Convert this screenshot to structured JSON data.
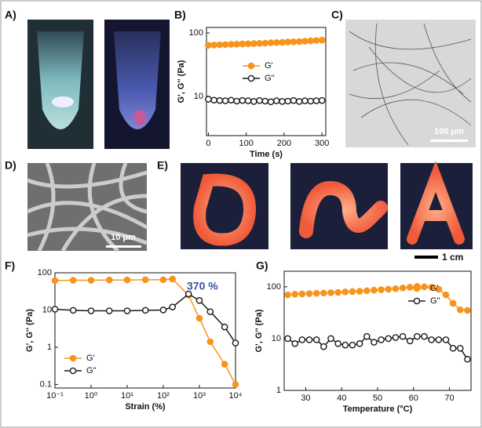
{
  "labels": {
    "A": "A)",
    "B": "B)",
    "C": "C)",
    "D": "D)",
    "E": "E)",
    "F": "F)",
    "G": "G)"
  },
  "scale_bars": {
    "C": "100 μm",
    "D": "10 μm",
    "E": "1 cm"
  },
  "chart_data": [
    {
      "type": "line",
      "xlabel": "Time (s)",
      "ylabel": "G', G'' (Pa)",
      "ylog": true,
      "xlog": false,
      "xlim": [
        -5,
        310
      ],
      "xticks": [
        0,
        100,
        200,
        300
      ],
      "ylim": [
        2.4,
        122
      ],
      "yticks": [
        10,
        100
      ],
      "legend": "center",
      "x": [
        0,
        15,
        30,
        45,
        60,
        75,
        90,
        105,
        120,
        135,
        150,
        165,
        180,
        195,
        210,
        225,
        240,
        255,
        270,
        285,
        300
      ],
      "series": [
        {
          "name": "G'",
          "color": "#f7941d",
          "marker_fill": "#f7941d",
          "values": [
            64,
            64.5,
            65,
            65.5,
            66,
            66.5,
            67,
            67.5,
            68,
            68.5,
            69,
            70,
            70.5,
            71,
            72,
            72.5,
            73,
            74,
            75,
            76,
            77
          ]
        },
        {
          "name": "G''",
          "color": "#1a1a1a",
          "marker_fill": "#ffffff",
          "values": [
            9,
            8.7,
            8.6,
            8.5,
            8.7,
            8.4,
            8.6,
            8.5,
            8.3,
            8.6,
            8.4,
            8.2,
            8.5,
            8.3,
            8.4,
            8.6,
            8.3,
            8.5,
            8.4,
            8.5,
            8.6
          ]
        }
      ]
    },
    {
      "type": "line",
      "xlabel": "Strain (%)",
      "ylabel": "G', G'' (Pa)",
      "ylog": true,
      "xlog": true,
      "xlim": [
        0.1,
        10000
      ],
      "xticks": [
        {
          "value": 0.1,
          "label": "10⁻¹"
        },
        {
          "value": 1,
          "label": "10⁰"
        },
        {
          "value": 10,
          "label": "10¹"
        },
        {
          "value": 100,
          "label": "10²"
        },
        {
          "value": 1000,
          "label": "10³"
        },
        {
          "value": 10000,
          "label": "10⁴"
        }
      ],
      "ylim": [
        0.08,
        100
      ],
      "yticks": [
        0.1,
        1,
        10,
        100
      ],
      "legend": "lower left",
      "annotation": "370 %",
      "x": [
        0.1,
        0.32,
        1,
        3.2,
        10,
        32,
        100,
        180,
        500,
        1000,
        2000,
        5000,
        10000
      ],
      "series": [
        {
          "name": "G'",
          "color": "#f7941d",
          "marker_fill": "#f7941d",
          "values": [
            62,
            63,
            63,
            64,
            64,
            65,
            65,
            68,
            25,
            6,
            1.4,
            0.35,
            0.1
          ]
        },
        {
          "name": "G''",
          "color": "#1a1a1a",
          "marker_fill": "#ffffff",
          "values": [
            10.5,
            9.8,
            9.5,
            9.5,
            9.5,
            9.8,
            10,
            12,
            27,
            18,
            9,
            3.5,
            1.3
          ]
        }
      ]
    },
    {
      "type": "line",
      "xlabel": "Temperature (°C)",
      "ylabel": "G', G'' (Pa)",
      "ylog": true,
      "xlog": false,
      "xlim": [
        24,
        76
      ],
      "xticks": [
        30,
        40,
        50,
        60,
        70
      ],
      "ylim": [
        1,
        200
      ],
      "yticks": [
        1,
        10,
        100
      ],
      "legend": "upper right",
      "x": [
        25,
        27,
        29,
        31,
        33,
        35,
        37,
        39,
        41,
        43,
        45,
        47,
        49,
        51,
        53,
        55,
        57,
        59,
        61,
        63,
        65,
        67,
        69,
        71,
        73,
        75
      ],
      "series": [
        {
          "name": "G'",
          "color": "#f7941d",
          "marker_fill": "#f7941d",
          "values": [
            70,
            72,
            73,
            74,
            75,
            76,
            77,
            78,
            80,
            81,
            82,
            84,
            86,
            88,
            90,
            92,
            95,
            98,
            102,
            100,
            98,
            90,
            70,
            48,
            36,
            35
          ]
        },
        {
          "name": "G''",
          "color": "#1a1a1a",
          "marker_fill": "#ffffff",
          "values": [
            10,
            8,
            9.5,
            9.5,
            9.5,
            7,
            10,
            8,
            7.5,
            7.5,
            8,
            11,
            8.5,
            9.5,
            10,
            10.5,
            11,
            9,
            11,
            11,
            9.5,
            9.5,
            9.5,
            6.5,
            6.5,
            4
          ]
        }
      ]
    }
  ]
}
